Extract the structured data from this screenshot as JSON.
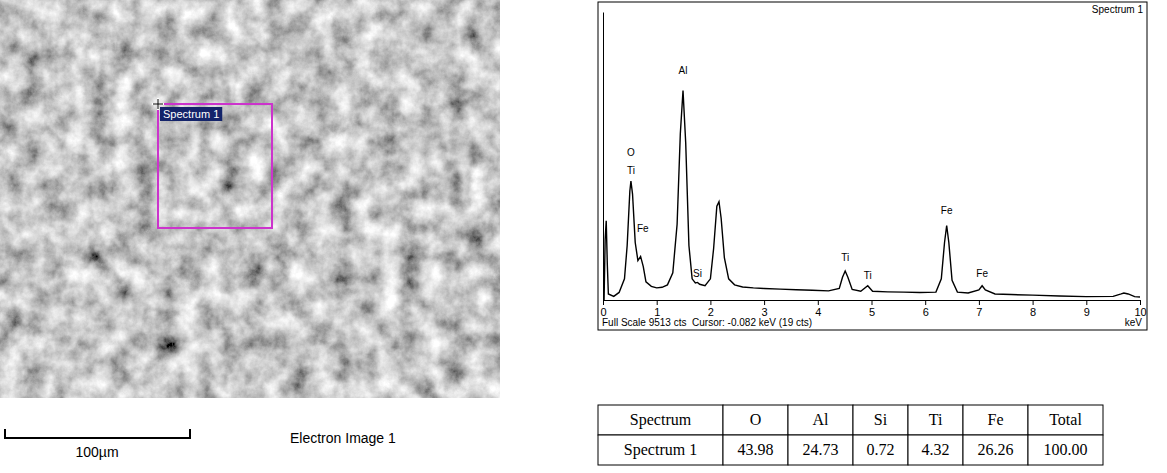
{
  "chart_data": {
    "type": "line",
    "title": "Spectrum 1",
    "xlabel": "keV",
    "footer": "Full Scale 9513 cts  Cursor: -0.082 keV (19 cts)",
    "color": "#000000",
    "x": [
      0,
      0.02,
      0.04,
      0.06,
      0.08,
      0.1,
      0.2,
      0.3,
      0.4,
      0.45,
      0.5,
      0.52,
      0.55,
      0.6,
      0.65,
      0.7,
      0.75,
      0.8,
      0.9,
      1.0,
      1.1,
      1.2,
      1.3,
      1.38,
      1.44,
      1.49,
      1.54,
      1.6,
      1.66,
      1.72,
      1.76,
      1.8,
      1.9,
      2.0,
      2.06,
      2.12,
      2.16,
      2.2,
      2.26,
      2.34,
      2.45,
      2.6,
      2.8,
      3.0,
      3.3,
      3.6,
      3.9,
      4.2,
      4.4,
      4.46,
      4.51,
      4.56,
      4.64,
      4.8,
      4.93,
      5.02,
      5.3,
      5.6,
      5.9,
      6.2,
      6.3,
      6.36,
      6.4,
      6.44,
      6.5,
      6.6,
      6.8,
      7.0,
      7.06,
      7.12,
      7.3,
      7.6,
      8.0,
      8.5,
      9.0,
      9.5,
      9.65,
      9.7,
      9.78,
      9.9,
      10.0
    ],
    "values": [
      0,
      0,
      2000,
      2620,
      1200,
      200,
      120,
      250,
      700,
      1800,
      3600,
      3930,
      3500,
      1900,
      1300,
      1440,
      1100,
      600,
      450,
      400,
      420,
      500,
      900,
      2500,
      5500,
      6920,
      5200,
      1800,
      700,
      560,
      580,
      520,
      470,
      700,
      1700,
      3100,
      3250,
      2700,
      1400,
      700,
      500,
      430,
      400,
      380,
      360,
      340,
      320,
      300,
      380,
      750,
      960,
      750,
      350,
      290,
      470,
      290,
      270,
      260,
      250,
      260,
      700,
      1900,
      2460,
      1900,
      650,
      260,
      230,
      330,
      470,
      330,
      200,
      180,
      160,
      130,
      110,
      120,
      200,
      230,
      200,
      110,
      100
    ],
    "xlim": [
      0,
      10
    ],
    "xticks": [
      0,
      1,
      2,
      3,
      4,
      5,
      6,
      7,
      8,
      9,
      10
    ],
    "ylim": [
      0,
      9513
    ],
    "tick_labels": "x",
    "grid": false,
    "annotations": [
      {
        "text": "O",
        "x": 0.52,
        "y": 4750
      },
      {
        "text": "Ti",
        "x": 0.52,
        "y": 4150
      },
      {
        "text": "Fe",
        "x": 0.74,
        "y": 2250
      },
      {
        "text": "Al",
        "x": 1.49,
        "y": 7450
      },
      {
        "text": "Si",
        "x": 1.76,
        "y": 750
      },
      {
        "text": "Ti",
        "x": 4.51,
        "y": 1300
      },
      {
        "text": "Ti",
        "x": 4.93,
        "y": 700
      },
      {
        "text": "Fe",
        "x": 6.4,
        "y": 2850
      },
      {
        "text": "Fe",
        "x": 7.06,
        "y": 750
      }
    ]
  },
  "electron_image": {
    "label": "Spectrum 1",
    "scale_bar": "100µm",
    "caption": "Electron Image 1"
  },
  "table": {
    "header": [
      "Spectrum",
      "O",
      "Al",
      "Si",
      "Ti",
      "Fe",
      "Total"
    ],
    "rows": [
      [
        "Spectrum 1",
        "43.98",
        "24.73",
        "0.72",
        "4.32",
        "26.26",
        "100.00"
      ]
    ]
  }
}
